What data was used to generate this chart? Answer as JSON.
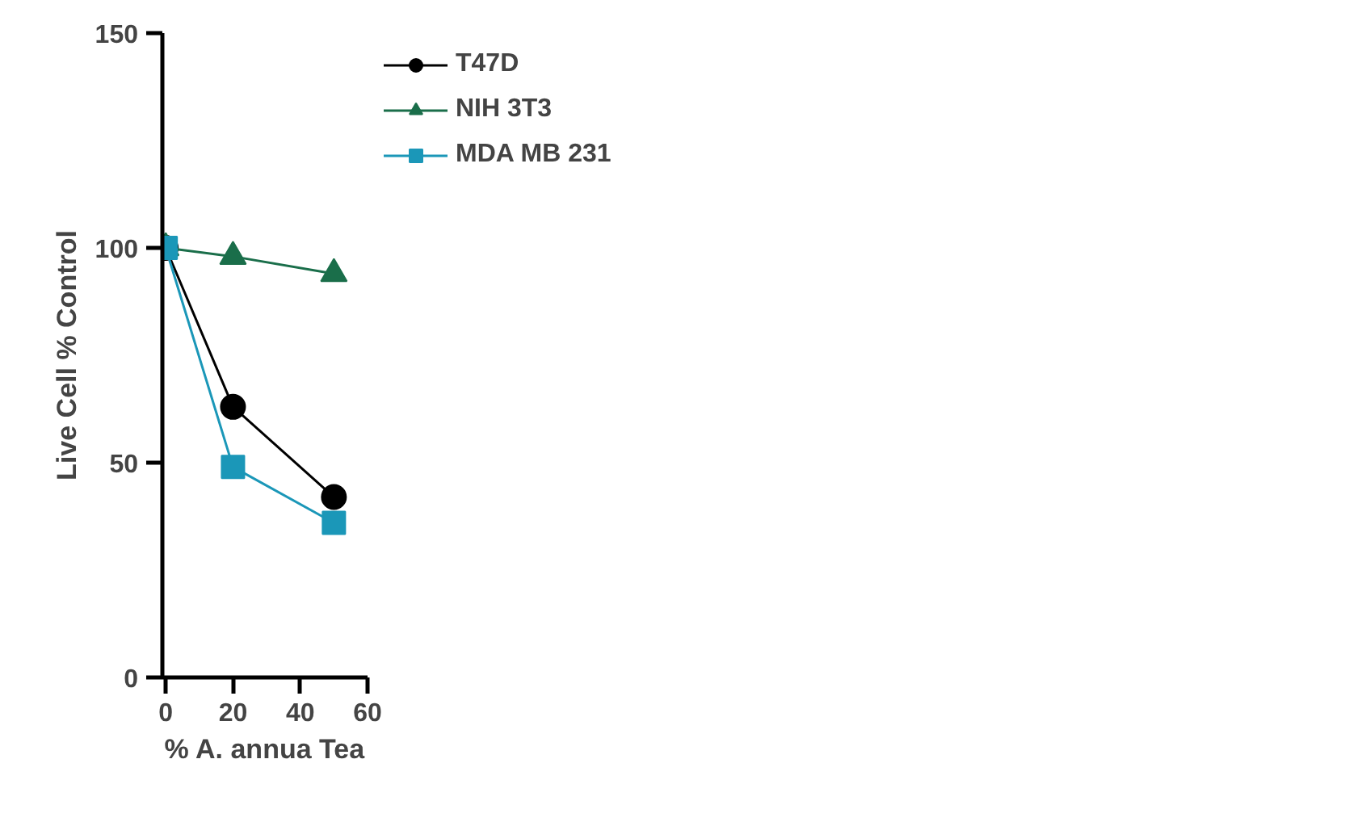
{
  "chart_data": {
    "type": "line",
    "xlabel": "% A. annua Tea",
    "ylabel": "Live Cell % Control",
    "x": [
      0,
      20,
      50
    ],
    "series": [
      {
        "name": "T47D",
        "color": "#000000",
        "values": [
          100,
          63,
          42
        ],
        "marker": "circle"
      },
      {
        "name": "NIH 3T3",
        "color": "#1a6e4a",
        "values": [
          100,
          98,
          94
        ],
        "marker": "triangle"
      },
      {
        "name": "MDA MB 231",
        "color": "#1b97b8",
        "values": [
          100,
          49,
          36
        ],
        "marker": "square"
      }
    ],
    "xlim": [
      -1,
      60
    ],
    "xticks": [
      0,
      20,
      40,
      60
    ],
    "ylim": [
      0,
      150
    ],
    "yticks": [
      0,
      50,
      100,
      150
    ],
    "grid": false,
    "legend": "top right",
    "line_style": "solid"
  }
}
